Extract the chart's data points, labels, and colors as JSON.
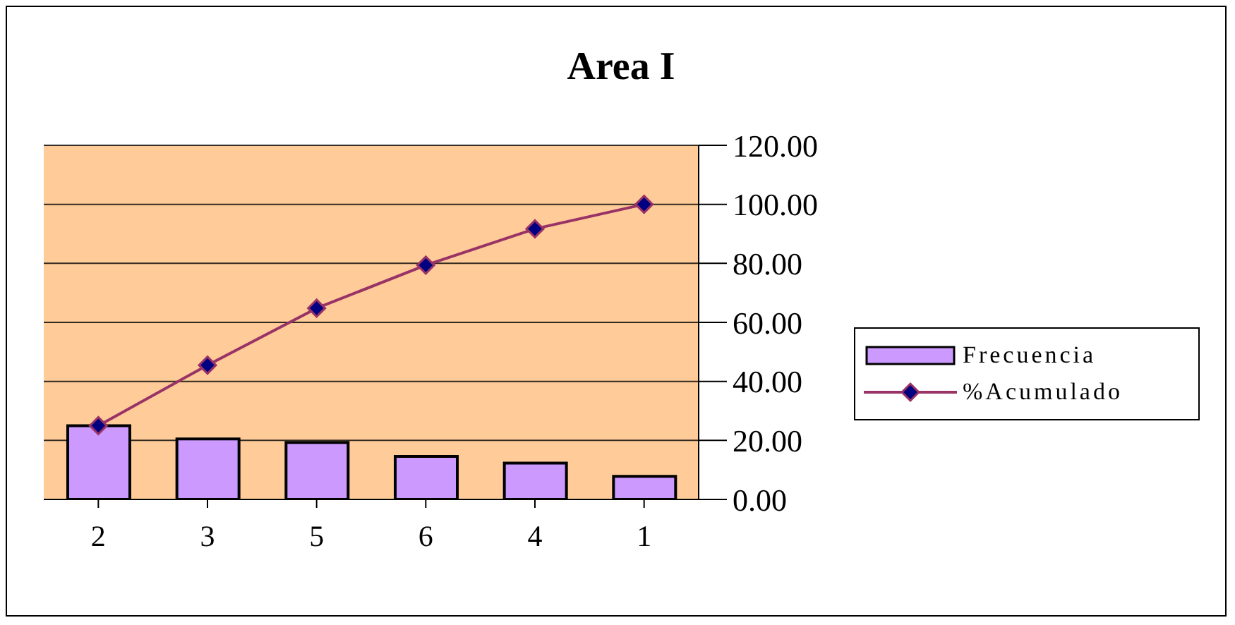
{
  "chart_data": {
    "type": "bar",
    "title": "Area I",
    "categories": [
      "2",
      "3",
      "5",
      "6",
      "4",
      "1"
    ],
    "series": [
      {
        "name": "Frecuencia",
        "color": "#cc99ff",
        "values": [
          25,
          20.5,
          19.3,
          14.6,
          12.3,
          7.8
        ]
      },
      {
        "name": "%Acumulado",
        "type": "line",
        "color": "#993366",
        "marker": "diamond",
        "values": [
          25,
          45.5,
          64.8,
          79.4,
          91.7,
          100
        ]
      }
    ],
    "ylim": [
      0,
      120
    ],
    "yticks": [
      {
        "value": 0,
        "label": "0.00"
      },
      {
        "value": 20,
        "label": "20.00"
      },
      {
        "value": 40,
        "label": "40.00"
      },
      {
        "value": 60,
        "label": "60.00"
      },
      {
        "value": 80,
        "label": "80.00"
      },
      {
        "value": 100,
        "label": "100.00"
      },
      {
        "value": 120,
        "label": "120.00"
      }
    ],
    "grid": "y",
    "legend": "right"
  }
}
